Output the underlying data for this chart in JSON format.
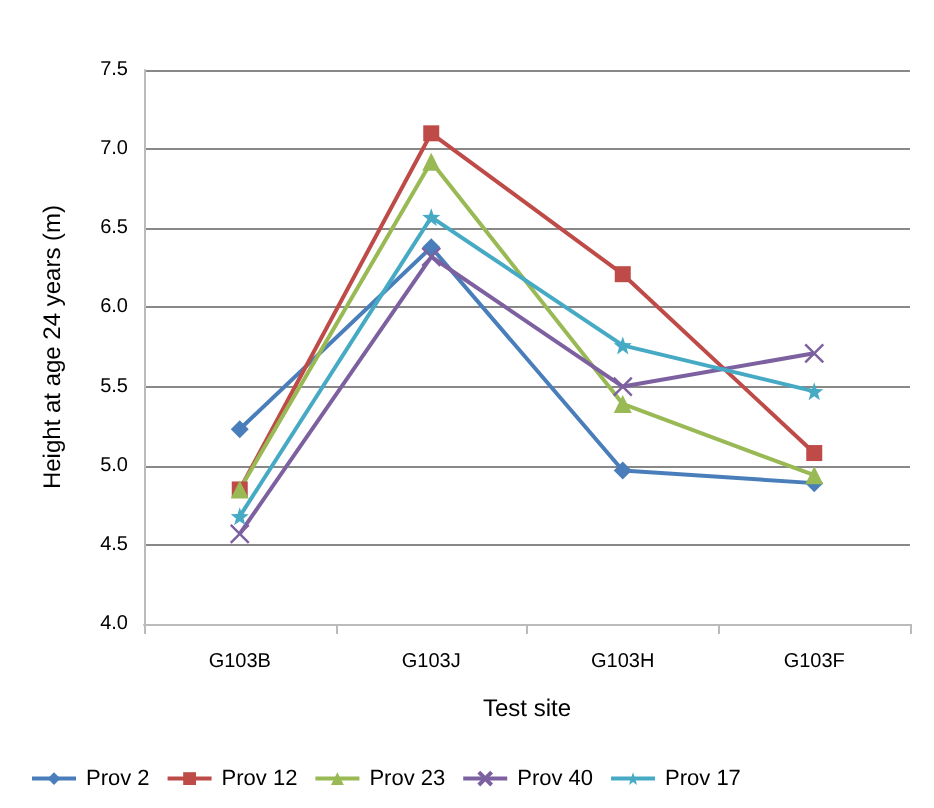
{
  "chart_data": {
    "type": "line",
    "xlabel": "Test site",
    "ylabel": "Height at age 24 years (m)",
    "categories": [
      "G103B",
      "G103J",
      "G103H",
      "G103F"
    ],
    "series": [
      {
        "name": "Prov 2",
        "color": "#4a7ebb",
        "marker": "diamond",
        "values": [
          5.23,
          6.38,
          4.97,
          4.89
        ]
      },
      {
        "name": "Prov 12",
        "color": "#be4b48",
        "marker": "square",
        "values": [
          4.85,
          7.1,
          6.21,
          5.08
        ]
      },
      {
        "name": "Prov 23",
        "color": "#98b954",
        "marker": "triangle",
        "values": [
          4.85,
          6.92,
          5.39,
          4.94
        ]
      },
      {
        "name": "Prov 40",
        "color": "#7d60a0",
        "marker": "cross",
        "values": [
          4.57,
          6.32,
          5.5,
          5.71
        ]
      },
      {
        "name": "Prov 17",
        "color": "#46aac5",
        "marker": "star",
        "values": [
          4.68,
          6.57,
          5.76,
          5.47
        ]
      }
    ],
    "ylim": [
      4,
      7.5
    ],
    "yticks": [
      {
        "value": 4,
        "label": "4.0"
      },
      {
        "value": 4.5,
        "label": "4.5"
      },
      {
        "value": 5,
        "label": "5.0"
      },
      {
        "value": 5.5,
        "label": "5.5"
      },
      {
        "value": 6,
        "label": "6.0"
      },
      {
        "value": 6.5,
        "label": "6.5"
      },
      {
        "value": 7,
        "label": "7.0"
      },
      {
        "value": 7.5,
        "label": "7.5"
      }
    ],
    "grid": "y",
    "legend": "bottom"
  }
}
